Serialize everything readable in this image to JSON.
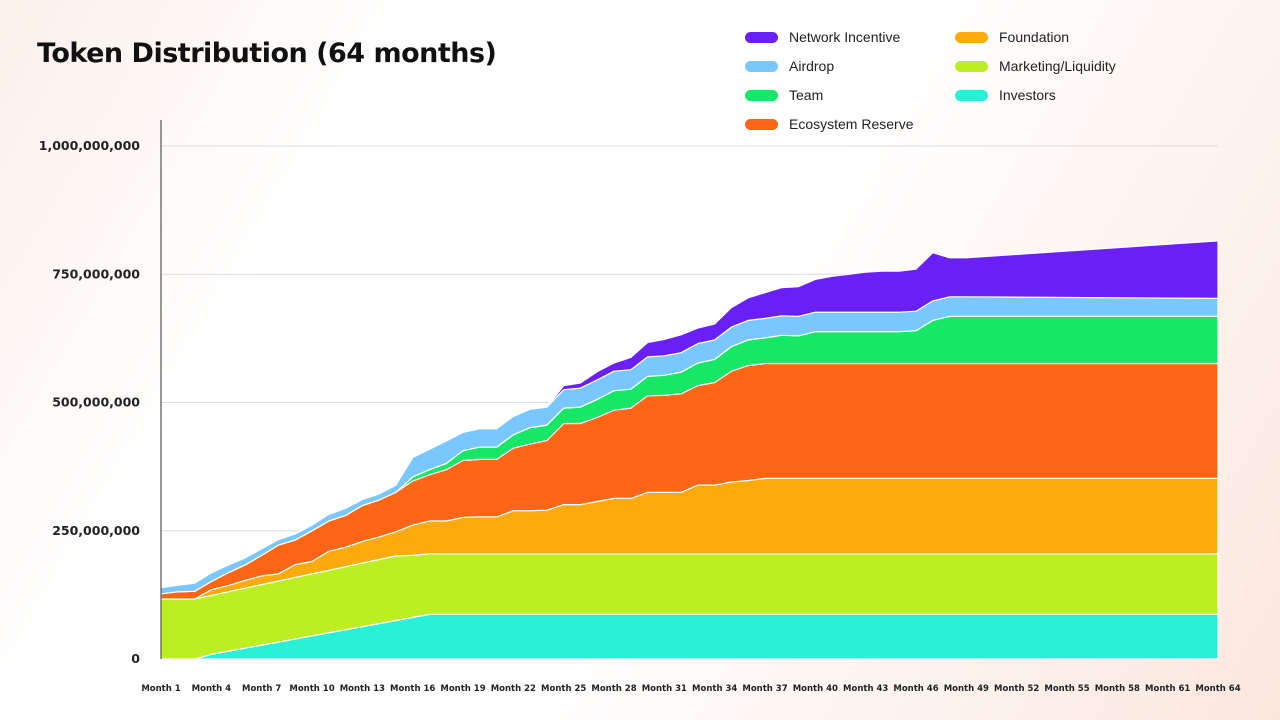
{
  "chart_data": {
    "type": "area",
    "title": "Token Distribution (64 months)",
    "xlabel": "",
    "ylabel": "",
    "ylim": [
      0,
      1000000000
    ],
    "yticks": [
      {
        "value": 0,
        "label": "0"
      },
      {
        "value": 250000000,
        "label": "250,000,000"
      },
      {
        "value": 500000000,
        "label": "500,000,000"
      },
      {
        "value": 750000000,
        "label": "750,000,000"
      },
      {
        "value": 1000000000,
        "label": "1,000,000,000"
      }
    ],
    "x_tick_labels": [
      "Month 1",
      "Month 4",
      "Month 7",
      "Month 10",
      "Month 13",
      "Month 16",
      "Month 19",
      "Month 22",
      "Month 25",
      "Month 28",
      "Month 31",
      "Month 34",
      "Month 37",
      "Month 40",
      "Month 43",
      "Month 46",
      "Month 49",
      "Month 52",
      "Month 55",
      "Month 58",
      "Month 61",
      "Month 64"
    ],
    "legend": {
      "placement": "top-right",
      "columns": 2
    },
    "grid": "horizontal",
    "x": [
      1,
      2,
      3,
      4,
      5,
      6,
      7,
      8,
      9,
      10,
      11,
      12,
      13,
      14,
      15,
      16,
      17,
      18,
      19,
      20,
      21,
      22,
      23,
      24,
      25,
      26,
      27,
      28,
      29,
      30,
      31,
      32,
      33,
      34,
      35,
      36,
      37,
      38,
      39,
      40,
      41,
      42,
      43,
      44,
      45,
      46,
      47,
      48,
      49,
      64
    ],
    "series": [
      {
        "name": "Investors",
        "color": "#29efd6",
        "values": [
          0,
          0,
          0,
          9,
          15,
          21,
          27,
          33,
          39,
          45,
          51,
          57,
          63,
          69,
          75,
          81,
          87,
          87,
          87,
          87,
          87,
          87,
          87,
          87,
          87,
          87,
          87,
          87,
          87,
          87,
          87,
          87,
          87,
          87,
          87,
          87,
          87,
          87,
          87,
          87,
          87,
          87,
          87,
          87,
          87,
          87,
          87,
          87,
          87,
          87
        ]
      },
      {
        "name": "Marketing/Liquidity",
        "color": "#bdee22",
        "values": [
          117,
          117,
          117,
          115,
          116,
          117,
          118,
          119,
          120,
          121,
          122,
          123,
          124,
          125,
          126,
          121,
          118,
          118,
          118,
          118,
          118,
          118,
          118,
          118,
          118,
          118,
          118,
          118,
          118,
          118,
          118,
          118,
          118,
          118,
          118,
          118,
          118,
          118,
          118,
          118,
          118,
          118,
          118,
          118,
          118,
          118,
          118,
          118,
          118,
          118
        ]
      },
      {
        "name": "Foundation",
        "color": "#fdaa0f",
        "values": [
          0,
          0,
          0,
          11,
          12,
          15,
          17,
          14,
          25,
          24,
          37,
          38,
          42,
          44,
          47,
          59,
          64,
          64,
          71,
          72,
          72,
          84,
          84,
          85,
          96,
          96,
          102,
          108,
          108,
          120,
          120,
          120,
          134,
          134,
          140,
          143,
          147,
          147,
          147,
          147,
          147,
          147,
          147,
          147,
          147,
          147,
          147,
          147,
          147,
          147
        ]
      },
      {
        "name": "Ecosystem Reserve",
        "color": "#ff6516",
        "values": [
          10,
          14,
          15,
          16,
          25,
          30,
          40,
          56,
          48,
          60,
          59,
          62,
          70,
          72,
          77,
          86,
          90,
          100,
          111,
          112,
          112,
          122,
          130,
          136,
          158,
          158,
          164,
          172,
          176,
          188,
          189,
          192,
          194,
          200,
          216,
          224,
          224,
          224,
          224,
          224,
          224,
          224,
          224,
          224,
          224,
          224,
          224,
          224,
          224,
          224
        ]
      },
      {
        "name": "Team",
        "color": "#16e766",
        "values": [
          0,
          0,
          0,
          0,
          0,
          0,
          0,
          0,
          0,
          0,
          0,
          0,
          0,
          0,
          0,
          8,
          10,
          12,
          19,
          24,
          24,
          26,
          32,
          30,
          30,
          32,
          35,
          38,
          37,
          38,
          39,
          42,
          44,
          45,
          48,
          50,
          50,
          55,
          54,
          62,
          62,
          62,
          62,
          62,
          62,
          64,
          84,
          92,
          92,
          92
        ]
      },
      {
        "name": "Airdrop",
        "color": "#79c7fc",
        "values": [
          12,
          13,
          16,
          17,
          15,
          14,
          13,
          11,
          12,
          11,
          13,
          14,
          12,
          12,
          14,
          38,
          40,
          44,
          36,
          36,
          36,
          36,
          36,
          35,
          36,
          37,
          38,
          38,
          38,
          38,
          38,
          38,
          38,
          38,
          38,
          38,
          38,
          38,
          38,
          38,
          38,
          38,
          38,
          38,
          38,
          38,
          38,
          38,
          38,
          35
        ]
      },
      {
        "name": "Network Incentive",
        "color": "#6a20f4",
        "values": [
          0,
          0,
          0,
          0,
          0,
          0,
          0,
          0,
          0,
          0,
          0,
          0,
          0,
          0,
          0,
          0,
          0,
          0,
          0,
          0,
          0,
          0,
          0,
          0,
          8,
          10,
          16,
          16,
          24,
          28,
          32,
          35,
          30,
          31,
          38,
          44,
          50,
          55,
          58,
          64,
          70,
          74,
          78,
          80,
          80,
          82,
          94,
          76,
          76,
          112
        ]
      }
    ]
  }
}
